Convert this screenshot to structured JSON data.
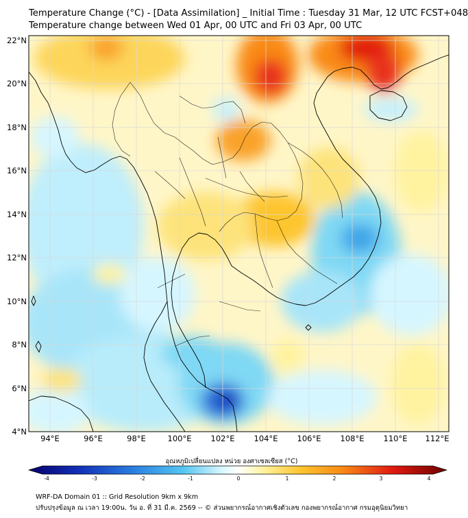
{
  "header": {
    "title": "Temperature Change (°C) - [Data Assimilation] _ Initial Time : Tuesday 31 Mar, 12 UTC FCST+048",
    "subtitle": "Temperature change between Wed 01 Apr, 00 UTC and Fri 03 Apr, 00 UTC"
  },
  "map": {
    "lon_labels": [
      "94°E",
      "96°E",
      "98°E",
      "100°E",
      "102°E",
      "104°E",
      "106°E",
      "108°E",
      "110°E",
      "112°E"
    ],
    "lat_labels": [
      "22°N",
      "20°N",
      "18°N",
      "16°N",
      "14°N",
      "12°N",
      "10°N",
      "8°N",
      "6°N",
      "4°N"
    ],
    "lon_range": [
      93,
      112.5
    ],
    "lat_range": [
      4,
      22.2
    ]
  },
  "colorbar": {
    "label": "อุณหภูมิเปลี่ยนแปลง หน่วย องศาเซลเซียส (°C)",
    "ticks": [
      "-4",
      "-3",
      "-2",
      "-1",
      "0",
      "1",
      "2",
      "3",
      "4"
    ],
    "range": [
      -4,
      4
    ]
  },
  "footer": {
    "line1": "WRF-DA Domain 01 :: Grid Resolution 9km x 9km",
    "line2": "ปรับปรุงข้อมูล ณ เวลา 19:00น. วัน อ. ที่ 31 มี.ค. 2569 -- © ส่วนพยากรณ์อากาศเชิงตัวเลข กองพยากรณ์อากาศ กรมอุตุนิยมวิทยา"
  },
  "colors": {
    "neutral": "#ffffff",
    "warm_1": "#fff3a0",
    "warm_2": "#fdc52f",
    "warm_3": "#f98a16",
    "warm_4": "#e11a10",
    "cool_1": "#d6f6ff",
    "cool_2": "#7fd8f4",
    "cool_3": "#3fa6e8",
    "cool_4": "#1230b8",
    "coastline": "#000000",
    "gridline": "#d8d8d8"
  }
}
